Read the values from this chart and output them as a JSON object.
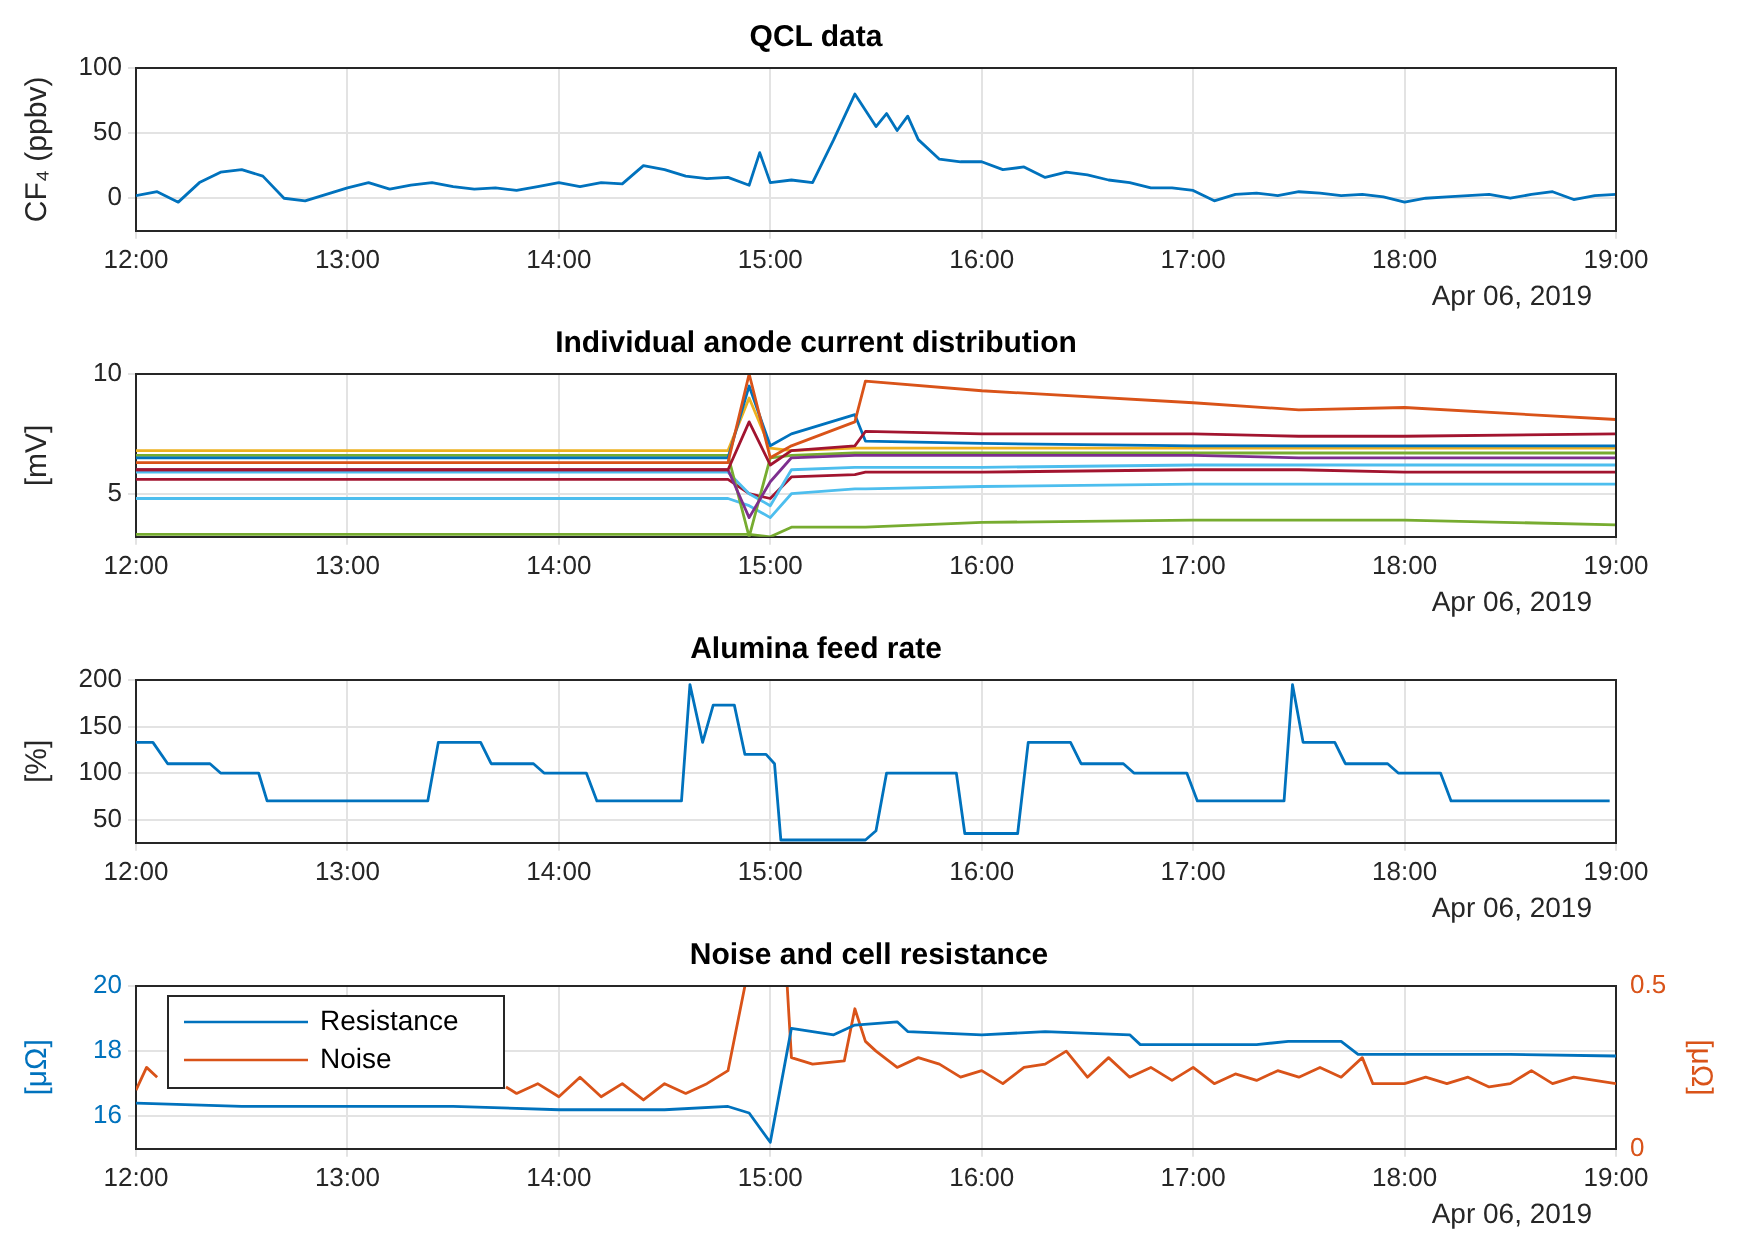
{
  "chart_data": [
    {
      "type": "line",
      "title": "QCL data",
      "ylabel": "CF₄ (ppbv)",
      "xlim": [
        12,
        19
      ],
      "xticks": [
        {
          "value": 12,
          "label": "12:00"
        },
        {
          "value": 13,
          "label": "13:00"
        },
        {
          "value": 14,
          "label": "14:00"
        },
        {
          "value": 15,
          "label": "15:00"
        },
        {
          "value": 16,
          "label": "16:00"
        },
        {
          "value": 17,
          "label": "17:00"
        },
        {
          "value": 18,
          "label": "18:00"
        },
        {
          "value": 19,
          "label": "19:00"
        }
      ],
      "ylim": [
        -25,
        100
      ],
      "yticks": [
        0,
        50,
        100
      ],
      "grid": true,
      "annotations": [
        "Apr 06, 2019"
      ],
      "series": [
        {
          "color": "#0072bd",
          "x": [
            12,
            12.1,
            12.2,
            12.3,
            12.4,
            12.5,
            12.6,
            12.7,
            12.8,
            12.9,
            13,
            13.1,
            13.2,
            13.3,
            13.4,
            13.5,
            13.6,
            13.7,
            13.8,
            13.9,
            14,
            14.1,
            14.2,
            14.3,
            14.4,
            14.5,
            14.6,
            14.7,
            14.8,
            14.9,
            14.95,
            15,
            15.1,
            15.2,
            15.3,
            15.4,
            15.5,
            15.55,
            15.6,
            15.65,
            15.7,
            15.8,
            15.9,
            16,
            16.1,
            16.2,
            16.3,
            16.4,
            16.5,
            16.6,
            16.7,
            16.8,
            16.9,
            17,
            17.1,
            17.2,
            17.3,
            17.4,
            17.5,
            17.6,
            17.7,
            17.8,
            17.9,
            18,
            18.1,
            18.2,
            18.3,
            18.4,
            18.5,
            18.6,
            18.7,
            18.8,
            18.9,
            19
          ],
          "values": [
            2,
            5,
            -3,
            12,
            20,
            22,
            17,
            0,
            -2,
            3,
            8,
            12,
            7,
            10,
            12,
            9,
            7,
            8,
            6,
            9,
            12,
            9,
            12,
            11,
            25,
            22,
            17,
            15,
            16,
            10,
            35,
            12,
            14,
            12,
            45,
            80,
            55,
            65,
            52,
            63,
            45,
            30,
            28,
            28,
            22,
            24,
            16,
            20,
            18,
            14,
            12,
            8,
            8,
            6,
            -2,
            3,
            4,
            2,
            5,
            4,
            2,
            3,
            1,
            -3,
            0,
            1,
            2,
            3,
            0,
            3,
            5,
            -1,
            2,
            3
          ]
        }
      ]
    },
    {
      "type": "line",
      "title": "Individual anode current distribution",
      "ylabel": "[mV]",
      "xlim": [
        12,
        19
      ],
      "xticks": [
        {
          "value": 12,
          "label": "12:00"
        },
        {
          "value": 13,
          "label": "13:00"
        },
        {
          "value": 14,
          "label": "14:00"
        },
        {
          "value": 15,
          "label": "15:00"
        },
        {
          "value": 16,
          "label": "16:00"
        },
        {
          "value": 17,
          "label": "17:00"
        },
        {
          "value": 18,
          "label": "18:00"
        },
        {
          "value": 19,
          "label": "19:00"
        }
      ],
      "ylim": [
        3.2,
        10
      ],
      "yticks": [
        5,
        10
      ],
      "grid": true,
      "annotations": [
        "Apr 06, 2019"
      ],
      "x": [
        12,
        14.8,
        14.9,
        15,
        15.1,
        15.4,
        15.45,
        16,
        17,
        17.5,
        18,
        19
      ],
      "series": [
        {
          "color": "#d95319",
          "values": [
            6.3,
            6.3,
            10,
            6.5,
            7,
            8,
            9.7,
            9.3,
            8.8,
            8.5,
            8.6,
            8.1
          ]
        },
        {
          "color": "#a2142f",
          "values": [
            6,
            6,
            8,
            6.2,
            6.8,
            7,
            7.6,
            7.5,
            7.5,
            7.4,
            7.4,
            7.5
          ]
        },
        {
          "color": "#0072bd",
          "values": [
            6.5,
            6.5,
            9.5,
            7,
            7.5,
            8.3,
            7.2,
            7.1,
            7,
            7,
            7,
            7
          ]
        },
        {
          "color": "#edb120",
          "values": [
            6.8,
            6.8,
            9,
            6.9,
            6.8,
            6.9,
            6.9,
            6.9,
            6.9,
            6.9,
            6.9,
            6.9
          ]
        },
        {
          "color": "#7e2f8e",
          "values": [
            6,
            6,
            4,
            5.5,
            6.5,
            6.6,
            6.6,
            6.6,
            6.6,
            6.5,
            6.5,
            6.5
          ]
        },
        {
          "color": "#77ac30",
          "values": [
            6.6,
            6.6,
            3.2,
            6.5,
            6.6,
            6.7,
            6.7,
            6.7,
            6.7,
            6.7,
            6.7,
            6.7
          ]
        },
        {
          "color": "#4dbeee",
          "values": [
            5.9,
            5.9,
            5,
            4.5,
            6,
            6.1,
            6.1,
            6.1,
            6.2,
            6.2,
            6.2,
            6.2
          ]
        },
        {
          "color": "#a2142f",
          "values": [
            5.6,
            5.6,
            5,
            4.8,
            5.7,
            5.8,
            5.9,
            5.9,
            6,
            6,
            5.9,
            5.9
          ]
        },
        {
          "color": "#4dbeee",
          "values": [
            4.8,
            4.8,
            4.5,
            4,
            5,
            5.2,
            5.2,
            5.3,
            5.4,
            5.4,
            5.4,
            5.4
          ]
        },
        {
          "color": "#77ac30",
          "values": [
            3.3,
            3.3,
            3.3,
            3.2,
            3.6,
            3.6,
            3.6,
            3.8,
            3.9,
            3.9,
            3.9,
            3.7
          ]
        }
      ]
    },
    {
      "type": "line",
      "title": "Alumina feed rate",
      "ylabel": "[%]",
      "xlim": [
        12,
        19
      ],
      "xticks": [
        {
          "value": 12,
          "label": "12:00"
        },
        {
          "value": 13,
          "label": "13:00"
        },
        {
          "value": 14,
          "label": "14:00"
        },
        {
          "value": 15,
          "label": "15:00"
        },
        {
          "value": 16,
          "label": "16:00"
        },
        {
          "value": 17,
          "label": "17:00"
        },
        {
          "value": 18,
          "label": "18:00"
        },
        {
          "value": 19,
          "label": "19:00"
        }
      ],
      "ylim": [
        25,
        200
      ],
      "yticks": [
        50,
        100,
        150,
        200
      ],
      "grid": true,
      "annotations": [
        "Apr 06, 2019"
      ],
      "series": [
        {
          "color": "#0072bd",
          "x": [
            12,
            12.08,
            12.15,
            12.35,
            12.4,
            12.58,
            12.62,
            13.38,
            13.43,
            13.63,
            13.68,
            13.88,
            13.93,
            14.13,
            14.18,
            14.58,
            14.62,
            14.68,
            14.73,
            14.83,
            14.88,
            14.98,
            15.02,
            15.05,
            15.45,
            15.5,
            15.55,
            15.88,
            15.92,
            16.17,
            16.22,
            16.42,
            16.47,
            16.67,
            16.72,
            16.97,
            17.02,
            17.43,
            17.47,
            17.52,
            17.67,
            17.72,
            17.92,
            17.97,
            18.17,
            18.22,
            18.97
          ],
          "values": [
            133,
            133,
            110,
            110,
            100,
            100,
            70,
            70,
            133,
            133,
            110,
            110,
            100,
            100,
            70,
            70,
            195,
            133,
            173,
            173,
            120,
            120,
            110,
            28,
            28,
            38,
            100,
            100,
            35,
            35,
            133,
            133,
            110,
            110,
            100,
            100,
            70,
            70,
            195,
            133,
            133,
            110,
            110,
            100,
            100,
            70,
            70
          ]
        }
      ]
    },
    {
      "type": "line",
      "title": "Noise and cell resistance",
      "ylabel": "[μΩ]",
      "y2label": "[μΩ]",
      "xlim": [
        12,
        19
      ],
      "xticks": [
        {
          "value": 12,
          "label": "12:00"
        },
        {
          "value": 13,
          "label": "13:00"
        },
        {
          "value": 14,
          "label": "14:00"
        },
        {
          "value": 15,
          "label": "15:00"
        },
        {
          "value": 16,
          "label": "16:00"
        },
        {
          "value": 17,
          "label": "17:00"
        },
        {
          "value": 18,
          "label": "18:00"
        },
        {
          "value": 19,
          "label": "19:00"
        }
      ],
      "ylim": [
        15,
        20
      ],
      "yticks": [
        16,
        18,
        20
      ],
      "y2lim": [
        0,
        0.5
      ],
      "y2ticks": [
        0,
        0.5
      ],
      "grid": true,
      "legend": "top left",
      "annotations": [
        "Apr 06, 2019"
      ],
      "series": [
        {
          "name": "Resistance",
          "color": "#0072bd",
          "axis": "y",
          "x": [
            12,
            12.5,
            13,
            13.5,
            14,
            14.5,
            14.8,
            14.9,
            15,
            15.08,
            15.1,
            15.2,
            15.3,
            15.4,
            15.6,
            15.65,
            16,
            16.3,
            16.7,
            16.75,
            17.3,
            17.45,
            17.7,
            17.78,
            18.5,
            19
          ],
          "values": [
            16.4,
            16.3,
            16.3,
            16.3,
            16.2,
            16.2,
            16.3,
            16.1,
            15.2,
            18,
            18.7,
            18.6,
            18.5,
            18.8,
            18.9,
            18.6,
            18.5,
            18.6,
            18.5,
            18.2,
            18.2,
            18.3,
            18.3,
            17.9,
            17.9,
            17.85
          ]
        },
        {
          "name": "Noise",
          "color": "#d95319",
          "axis": "y2",
          "x": [
            12,
            12.05,
            12.1,
            12.15,
            13.75,
            13.8,
            13.9,
            14,
            14.1,
            14.2,
            14.3,
            14.4,
            14.5,
            14.6,
            14.7,
            14.8,
            14.88,
            14.9,
            15.08,
            15.1,
            15.2,
            15.35,
            15.4,
            15.45,
            15.5,
            15.6,
            15.7,
            15.8,
            15.9,
            16,
            16.1,
            16.2,
            16.3,
            16.4,
            16.5,
            16.6,
            16.7,
            16.8,
            16.9,
            17,
            17.1,
            17.2,
            17.3,
            17.4,
            17.5,
            17.6,
            17.7,
            17.8,
            17.85,
            18,
            18.1,
            18.2,
            18.3,
            18.4,
            18.5,
            18.6,
            18.7,
            18.8,
            18.9,
            19
          ],
          "values": [
            0.18,
            0.25,
            0.22,
            null,
            0.19,
            0.17,
            0.2,
            0.16,
            0.22,
            0.16,
            0.2,
            0.15,
            0.2,
            0.17,
            0.2,
            0.24,
            0.5,
            null,
            0.5,
            0.28,
            0.26,
            0.27,
            0.43,
            0.33,
            0.3,
            0.25,
            0.28,
            0.26,
            0.22,
            0.24,
            0.2,
            0.25,
            0.26,
            0.3,
            0.22,
            0.28,
            0.22,
            0.25,
            0.21,
            0.25,
            0.2,
            0.23,
            0.21,
            0.24,
            0.22,
            0.25,
            0.22,
            0.28,
            0.2,
            0.2,
            0.22,
            0.2,
            0.22,
            0.19,
            0.2,
            0.24,
            0.2,
            0.22,
            0.21,
            0.2
          ]
        }
      ]
    }
  ]
}
